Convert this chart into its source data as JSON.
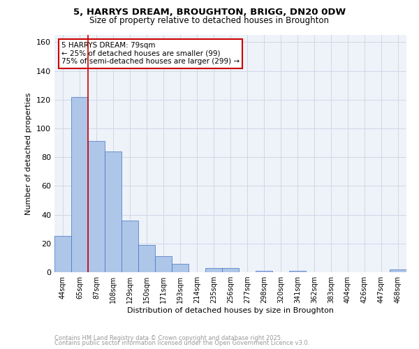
{
  "title_line1": "5, HARRYS DREAM, BROUGHTON, BRIGG, DN20 0DW",
  "title_line2": "Size of property relative to detached houses in Broughton",
  "xlabel": "Distribution of detached houses by size in Broughton",
  "ylabel": "Number of detached properties",
  "bar_labels": [
    "44sqm",
    "65sqm",
    "87sqm",
    "108sqm",
    "129sqm",
    "150sqm",
    "171sqm",
    "193sqm",
    "214sqm",
    "235sqm",
    "256sqm",
    "277sqm",
    "298sqm",
    "320sqm",
    "341sqm",
    "362sqm",
    "383sqm",
    "404sqm",
    "426sqm",
    "447sqm",
    "468sqm"
  ],
  "bar_values": [
    25,
    122,
    91,
    84,
    36,
    19,
    11,
    6,
    0,
    3,
    3,
    0,
    1,
    0,
    1,
    0,
    0,
    0,
    0,
    0,
    2
  ],
  "bar_color": "#aec6e8",
  "bar_edge_color": "#4472c4",
  "grid_color": "#d0d8e8",
  "background_color": "#eef2f9",
  "vline_x_index": 1.5,
  "vline_color": "#cc0000",
  "annotation_text": "5 HARRYS DREAM: 79sqm\n← 25% of detached houses are smaller (99)\n75% of semi-detached houses are larger (299) →",
  "annotation_box_color": "#ffffff",
  "annotation_box_edge": "#cc0000",
  "ylim": [
    0,
    165
  ],
  "yticks": [
    0,
    20,
    40,
    60,
    80,
    100,
    120,
    140,
    160
  ],
  "footer_line1": "Contains HM Land Registry data © Crown copyright and database right 2025.",
  "footer_line2": "Contains public sector information licensed under the Open Government Licence v3.0.",
  "footer_color": "#999999"
}
